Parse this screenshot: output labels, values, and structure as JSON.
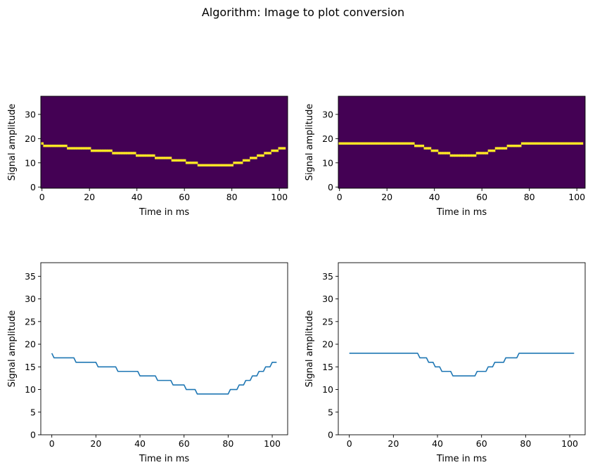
{
  "suptitle": "Algorithm: Image to plot conversion",
  "colors": {
    "image_background": "#440154",
    "image_signal": "#fde725",
    "line": "#1f77b4",
    "axes": "#000000"
  },
  "chart_data": [
    {
      "type": "heatmap",
      "panel": "top-left",
      "xlabel": "Time in ms",
      "ylabel": "Signal amplitude",
      "xlim": [
        -0.5,
        103.5
      ],
      "ylim": [
        -0.5,
        37.5
      ],
      "xticks": [
        "0",
        "20",
        "40",
        "60",
        "80",
        "100"
      ],
      "yticks": [
        "0",
        "10",
        "20",
        "30"
      ],
      "signal_source": "series_a"
    },
    {
      "type": "heatmap",
      "panel": "top-right",
      "xlabel": "Time in ms",
      "ylabel": "Signal amplitude",
      "xlim": [
        -0.5,
        103.5
      ],
      "ylim": [
        -0.5,
        37.5
      ],
      "xticks": [
        "0",
        "20",
        "40",
        "60",
        "80",
        "100"
      ],
      "yticks": [
        "0",
        "10",
        "20",
        "30"
      ],
      "signal_source": "series_b"
    },
    {
      "type": "line",
      "panel": "bottom-left",
      "xlabel": "Time in ms",
      "ylabel": "Signal amplitude",
      "xlim": [
        -5,
        107
      ],
      "ylim": [
        0,
        38
      ],
      "xticks": [
        "0",
        "20",
        "40",
        "60",
        "80",
        "100"
      ],
      "yticks": [
        "0",
        "5",
        "10",
        "15",
        "20",
        "25",
        "30",
        "35"
      ],
      "signal_source": "series_a"
    },
    {
      "type": "line",
      "panel": "bottom-right",
      "xlabel": "Time in ms",
      "ylabel": "Signal amplitude",
      "xlim": [
        -5,
        107
      ],
      "ylim": [
        0,
        38
      ],
      "xticks": [
        "0",
        "20",
        "40",
        "60",
        "80",
        "100"
      ],
      "yticks": [
        "0",
        "5",
        "10",
        "15",
        "20",
        "25",
        "30",
        "35"
      ],
      "signal_source": "series_b"
    }
  ],
  "series": {
    "series_a": {
      "x": [
        0,
        1,
        2,
        3,
        4,
        5,
        6,
        7,
        8,
        9,
        10,
        11,
        12,
        13,
        14,
        15,
        16,
        17,
        18,
        19,
        20,
        21,
        22,
        23,
        24,
        25,
        26,
        27,
        28,
        29,
        30,
        31,
        32,
        33,
        34,
        35,
        36,
        37,
        38,
        39,
        40,
        41,
        42,
        43,
        44,
        45,
        46,
        47,
        48,
        49,
        50,
        51,
        52,
        53,
        54,
        55,
        56,
        57,
        58,
        59,
        60,
        61,
        62,
        63,
        64,
        65,
        66,
        67,
        68,
        69,
        70,
        71,
        72,
        73,
        74,
        75,
        76,
        77,
        78,
        79,
        80,
        81,
        82,
        83,
        84,
        85,
        86,
        87,
        88,
        89,
        90,
        91,
        92,
        93,
        94,
        95,
        96,
        97,
        98,
        99,
        100,
        101,
        102
      ],
      "y": [
        18,
        17,
        17,
        17,
        17,
        17,
        17,
        17,
        17,
        17,
        17,
        16,
        16,
        16,
        16,
        16,
        16,
        16,
        16,
        16,
        16,
        15,
        15,
        15,
        15,
        15,
        15,
        15,
        15,
        15,
        14,
        14,
        14,
        14,
        14,
        14,
        14,
        14,
        14,
        14,
        13,
        13,
        13,
        13,
        13,
        13,
        13,
        13,
        12,
        12,
        12,
        12,
        12,
        12,
        12,
        11,
        11,
        11,
        11,
        11,
        11,
        10,
        10,
        10,
        10,
        10,
        9,
        9,
        9,
        9,
        9,
        9,
        9,
        9,
        9,
        9,
        9,
        9,
        9,
        9,
        9,
        10,
        10,
        10,
        10,
        11,
        11,
        11,
        12,
        12,
        12,
        13,
        13,
        13,
        14,
        14,
        14,
        15,
        15,
        15,
        16,
        16,
        16
      ]
    },
    "series_b": {
      "x": [
        0,
        1,
        2,
        3,
        4,
        5,
        6,
        7,
        8,
        9,
        10,
        11,
        12,
        13,
        14,
        15,
        16,
        17,
        18,
        19,
        20,
        21,
        22,
        23,
        24,
        25,
        26,
        27,
        28,
        29,
        30,
        31,
        32,
        33,
        34,
        35,
        36,
        37,
        38,
        39,
        40,
        41,
        42,
        43,
        44,
        45,
        46,
        47,
        48,
        49,
        50,
        51,
        52,
        53,
        54,
        55,
        56,
        57,
        58,
        59,
        60,
        61,
        62,
        63,
        64,
        65,
        66,
        67,
        68,
        69,
        70,
        71,
        72,
        73,
        74,
        75,
        76,
        77,
        78,
        79,
        80,
        81,
        82,
        83,
        84,
        85,
        86,
        87,
        88,
        89,
        90,
        91,
        92,
        93,
        94,
        95,
        96,
        97,
        98,
        99,
        100,
        101,
        102
      ],
      "y": [
        18,
        18,
        18,
        18,
        18,
        18,
        18,
        18,
        18,
        18,
        18,
        18,
        18,
        18,
        18,
        18,
        18,
        18,
        18,
        18,
        18,
        18,
        18,
        18,
        18,
        18,
        18,
        18,
        18,
        18,
        18,
        18,
        17,
        17,
        17,
        17,
        16,
        16,
        16,
        15,
        15,
        15,
        14,
        14,
        14,
        14,
        14,
        13,
        13,
        13,
        13,
        13,
        13,
        13,
        13,
        13,
        13,
        13,
        14,
        14,
        14,
        14,
        14,
        15,
        15,
        15,
        16,
        16,
        16,
        16,
        16,
        17,
        17,
        17,
        17,
        17,
        17,
        18,
        18,
        18,
        18,
        18,
        18,
        18,
        18,
        18,
        18,
        18,
        18,
        18,
        18,
        18,
        18,
        18,
        18,
        18,
        18,
        18,
        18,
        18,
        18,
        18,
        18
      ]
    }
  }
}
